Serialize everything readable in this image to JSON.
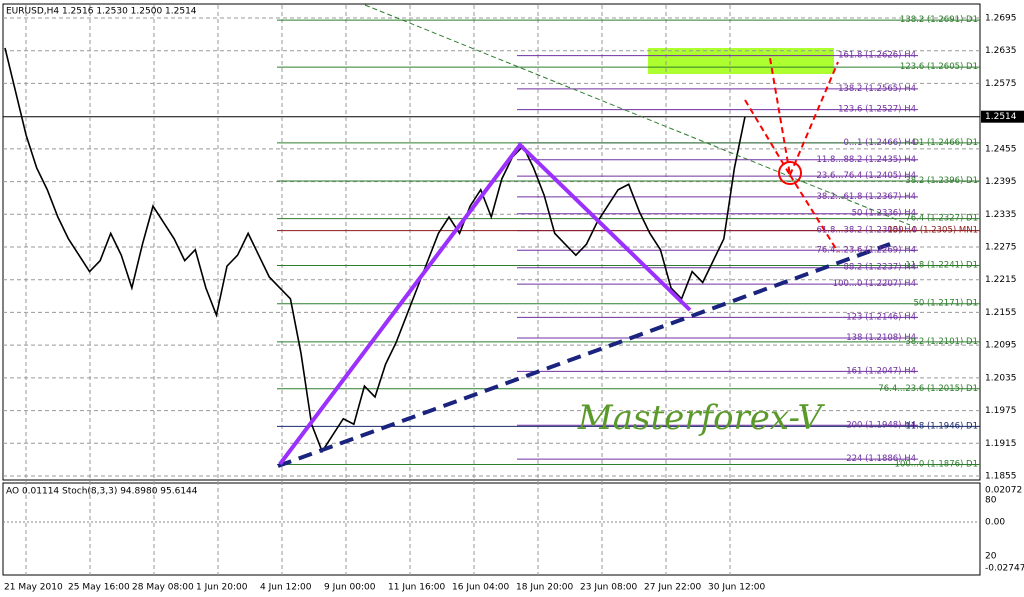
{
  "header": {
    "title": "EURUSD,H4  1.2516 1.2530 1.2500 1.2514"
  },
  "price_axis": {
    "ylim": [
      1.1855,
      1.2695
    ],
    "ticks": [
      1.2695,
      1.2635,
      1.2575,
      1.2455,
      1.2395,
      1.2335,
      1.2275,
      1.2215,
      1.2155,
      1.2095,
      1.2035,
      1.1975,
      1.1915,
      1.1855
    ],
    "current": 1.2514
  },
  "dates": [
    "21 May 2010",
    "25 May 16:00",
    "28 May 08:00",
    "1 Jun 20:00",
    "4 Jun 12:00",
    "9 Jun 00:00",
    "11 Jun 16:00",
    "16 Jun 04:00",
    "18 Jun 20:00",
    "23 Jun 08:00",
    "27 Jun 22:00",
    "30 Jun 12:00"
  ],
  "price_closes": [
    1.264,
    1.256,
    1.248,
    1.242,
    1.238,
    1.233,
    1.229,
    1.226,
    1.223,
    1.225,
    1.23,
    1.226,
    1.22,
    1.228,
    1.235,
    1.232,
    1.229,
    1.225,
    1.227,
    1.22,
    1.215,
    1.224,
    1.226,
    1.23,
    1.226,
    1.222,
    1.22,
    1.218,
    1.208,
    1.195,
    1.19,
    1.193,
    1.196,
    1.195,
    1.202,
    1.2,
    1.206,
    1.21,
    1.215,
    1.22,
    1.225,
    1.23,
    1.233,
    1.23,
    1.235,
    1.238,
    1.233,
    1.24,
    1.244,
    1.246,
    1.242,
    1.237,
    1.23,
    1.228,
    1.226,
    1.228,
    1.232,
    1.235,
    1.238,
    1.239,
    1.234,
    1.23,
    1.227,
    1.22,
    1.218,
    1.223,
    1.221,
    1.225,
    1.229,
    1.242,
    1.2514
  ],
  "levels": [
    {
      "label": "138.2 (1.2691) D1",
      "value": 1.2691,
      "color": "#2e7d2e"
    },
    {
      "label": "161.8 (1.2626) H4",
      "value": 1.2626,
      "color": "#7030a0"
    },
    {
      "label": "123.6 (1.2605) D1",
      "value": 1.2605,
      "color": "#2e7d2e"
    },
    {
      "label": "138.2 (1.2565) H4",
      "value": 1.2565,
      "color": "#7030a0"
    },
    {
      "label": "123.6 (1.2527) H4",
      "value": 1.2527,
      "color": "#7030a0"
    },
    {
      "label": "0...1 (1.2466) H4",
      "value": 1.2466,
      "color": "#7030a0"
    },
    {
      "label": "D1 (1.2466) D1",
      "value": 1.2466,
      "color": "#2e7d2e"
    },
    {
      "label": "11.8...88.2 (1.2435) H4",
      "value": 1.2435,
      "color": "#7030a0"
    },
    {
      "label": "23.6...76.4 (1.2405) H4",
      "value": 1.2405,
      "color": "#7030a0"
    },
    {
      "label": "38.2 (1.2396) D1",
      "value": 1.2396,
      "color": "#2e7d2e"
    },
    {
      "label": "38.2...61.8 (1.2367) H4",
      "value": 1.2367,
      "color": "#7030a0"
    },
    {
      "label": "50 (1.2336) H4",
      "value": 1.2336,
      "color": "#7030a0"
    },
    {
      "label": "76.4 (1.2327) D1",
      "value": 1.2327,
      "color": "#2e7d2e"
    },
    {
      "label": "61.8...38.2 (1.2305) H4",
      "value": 1.2305,
      "color": "#7030a0"
    },
    {
      "label": "100...0 (1.2305) MN1",
      "value": 1.2305,
      "color": "#8b1a1a"
    },
    {
      "label": "76.4...23.6 (1.2269) H4",
      "value": 1.2269,
      "color": "#7030a0"
    },
    {
      "label": "88.2 (1.2237) H4",
      "value": 1.2237,
      "color": "#7030a0"
    },
    {
      "label": "11.8 (1.2241) D1",
      "value": 1.2241,
      "color": "#2e7d2e"
    },
    {
      "label": "100...0 (1.2207) H4",
      "value": 1.2207,
      "color": "#7030a0"
    },
    {
      "label": "50 (1.2171) D1",
      "value": 1.2171,
      "color": "#2e7d2e"
    },
    {
      "label": "-123 (1.2146) H4",
      "value": 1.2146,
      "color": "#7030a0"
    },
    {
      "label": "138 (1.2108) H4",
      "value": 1.2108,
      "color": "#7030a0"
    },
    {
      "label": "38.2 (1.2101) D1",
      "value": 1.2101,
      "color": "#2e7d2e"
    },
    {
      "label": "161 (1.2047) H4",
      "value": 1.2047,
      "color": "#7030a0"
    },
    {
      "label": "76.4...23.6 (1.2015) D1",
      "value": 1.2015,
      "color": "#2e7d2e"
    },
    {
      "label": "200 (1.1948) H4",
      "value": 1.1948,
      "color": "#7030a0"
    },
    {
      "label": "11.8 (1.1946) D1",
      "value": 1.1946,
      "color": "#1a2a6b"
    },
    {
      "label": "224 (1.1886) H4",
      "value": 1.1886,
      "color": "#7030a0"
    },
    {
      "label": "100...0 (1.1876) D1",
      "value": 1.1876,
      "color": "#2e7d2e"
    }
  ],
  "indicator": {
    "title": "AO 0.01114  Stoch(8,3,3) 94.8980 95.6144",
    "ticks": [
      "0.02072",
      "80",
      "0.00",
      "20",
      "-0.02747"
    ]
  },
  "watermark": "Masterforex-V"
}
